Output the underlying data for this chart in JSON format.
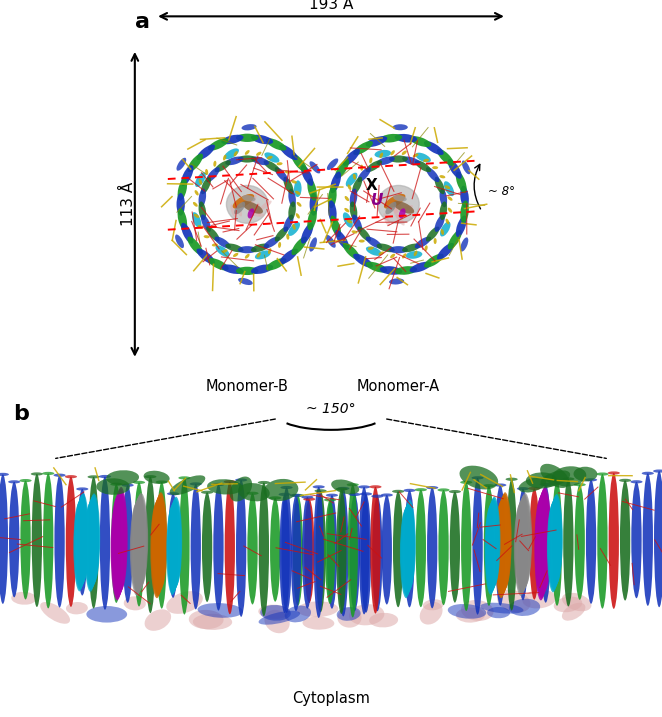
{
  "figure_width": 6.62,
  "figure_height": 7.17,
  "dpi": 100,
  "bg_color": "#ffffff",
  "panel_a_label": "a",
  "panel_b_label": "b",
  "width_label": "193 Å",
  "height_label": "113 Å",
  "angle_label_a": "~ 8°",
  "angle_label_b": "~ 150°",
  "monomer_b_label": "Monomer-B",
  "monomer_a_label": "Monomer-A",
  "cytoplasm_label": "Cytoplasm",
  "x_label": "X",
  "u_label": "U",
  "red_dotted_color": "#ff0000",
  "blue_helix": "#1535bb",
  "green_helix": "#1a9a25",
  "dark_green_helix": "#1a6e20",
  "cyan_helix": "#00aacc",
  "gray_rc": "#888888",
  "orange_rc": "#cc6600",
  "brown_rc": "#886644",
  "magenta_rc": "#aa00aa",
  "pink_rc": "#ddaaaa",
  "yellow_carot": "#ccaa00",
  "red_carot": "#cc1111"
}
